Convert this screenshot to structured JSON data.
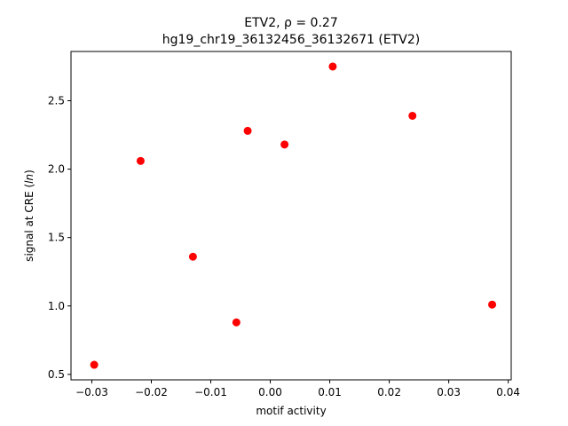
{
  "chart_data": {
    "type": "scatter",
    "title_line1": "ETV2, ρ = 0.27",
    "title_line2": "hg19_chr19_36132456_36132671 (ETV2)",
    "xlabel": "motif activity",
    "ylabel_prefix": "signal at CRE (",
    "ylabel_italic": "ln",
    "ylabel_suffix": ")",
    "xlim": [
      -0.0335,
      0.0405
    ],
    "ylim": [
      0.46,
      2.86
    ],
    "xticks": [
      -0.03,
      -0.02,
      -0.01,
      0.0,
      0.01,
      0.02,
      0.03,
      0.04
    ],
    "xtick_labels": [
      "−0.03",
      "−0.02",
      "−0.01",
      "0.00",
      "0.01",
      "0.02",
      "0.03",
      "0.04"
    ],
    "yticks": [
      0.5,
      1.0,
      1.5,
      2.0,
      2.5
    ],
    "ytick_labels": [
      "0.5",
      "1.0",
      "1.5",
      "2.0",
      "2.5"
    ],
    "marker_color": "#ff0000",
    "grid": false,
    "points": [
      {
        "x": -0.0296,
        "y": 0.57
      },
      {
        "x": -0.0218,
        "y": 2.06
      },
      {
        "x": -0.013,
        "y": 1.36
      },
      {
        "x": -0.0057,
        "y": 0.88
      },
      {
        "x": -0.0038,
        "y": 2.28
      },
      {
        "x": 0.0024,
        "y": 2.18
      },
      {
        "x": 0.0105,
        "y": 2.75
      },
      {
        "x": 0.0239,
        "y": 2.39
      },
      {
        "x": 0.0373,
        "y": 1.01
      }
    ]
  }
}
